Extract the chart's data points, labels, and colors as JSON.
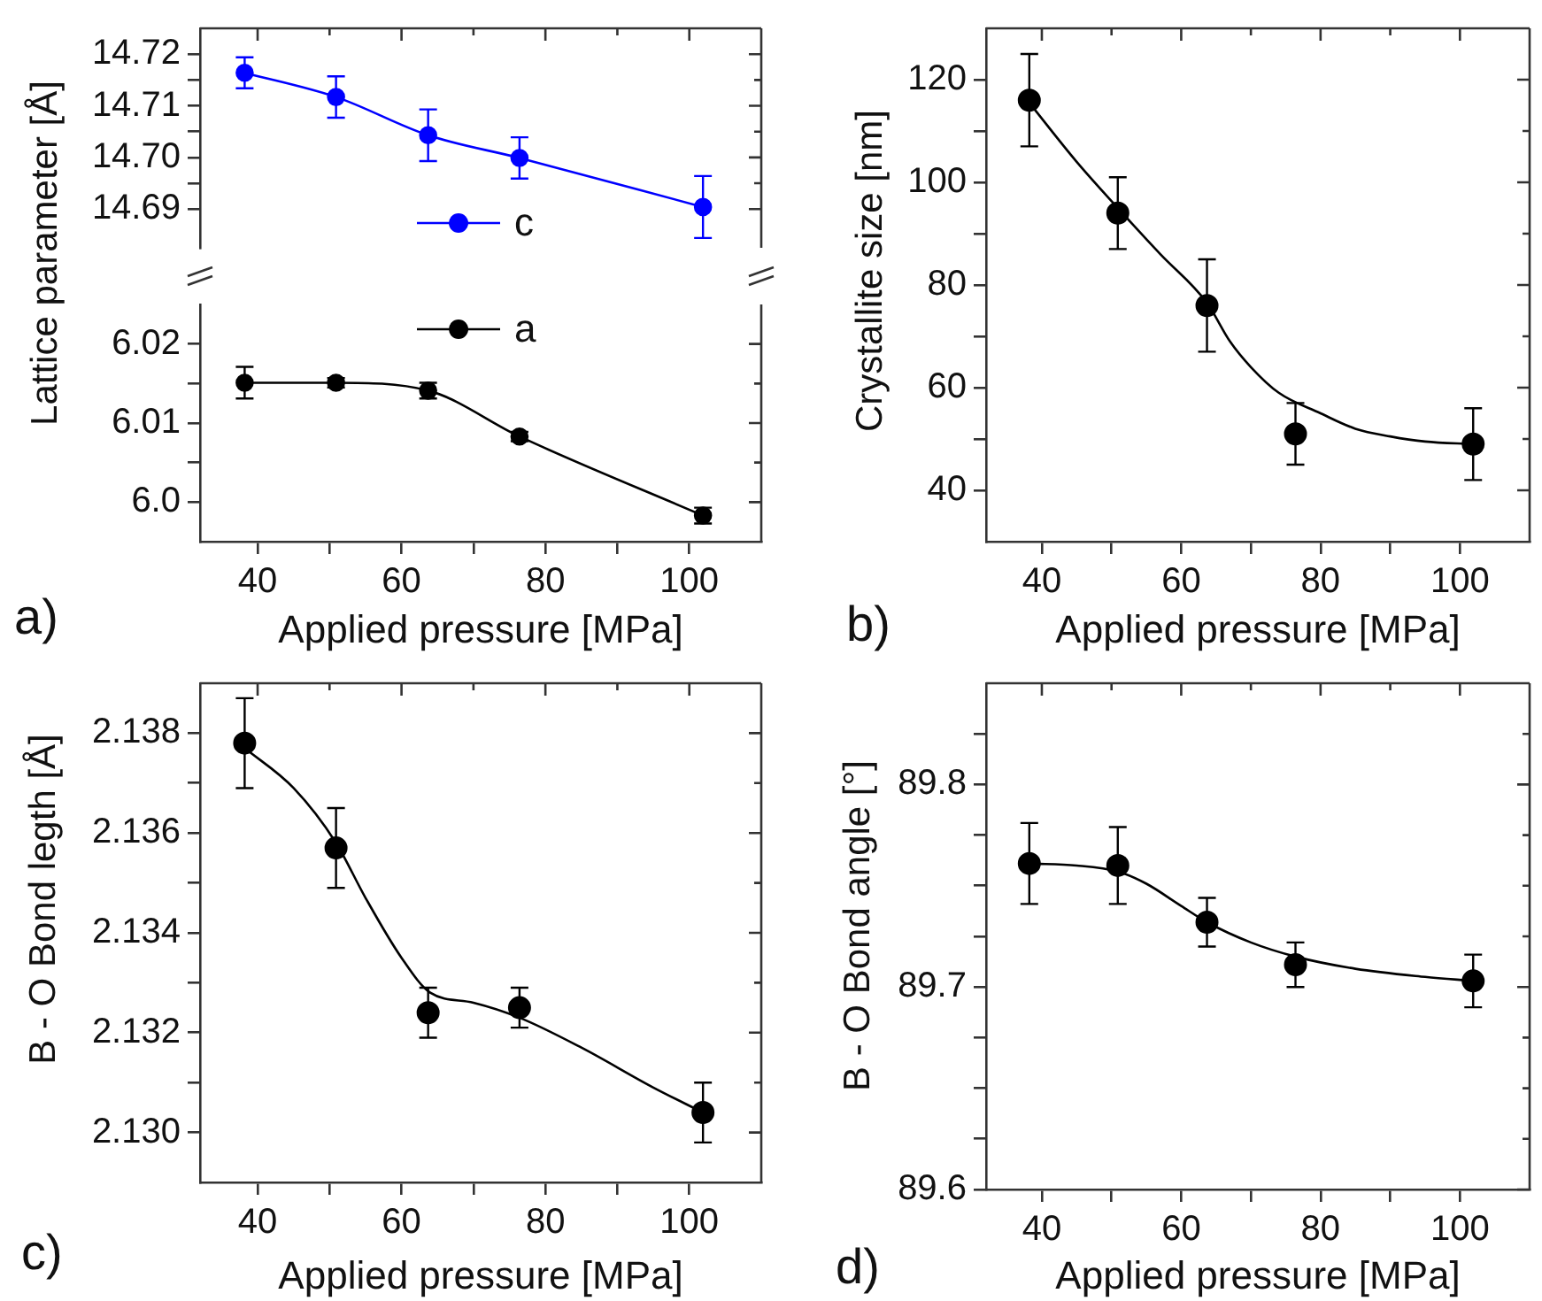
{
  "chart_data": [
    {
      "type": "line",
      "x": [
        38.2,
        50.9,
        63.7,
        76.4,
        101.9
      ],
      "xlim": [
        32,
        110
      ],
      "xticks": [
        40,
        {
          "value": 50,
          "label": null
        },
        60,
        {
          "value": 70,
          "label": null
        },
        80,
        {
          "value": 90,
          "label": null
        },
        100
      ],
      "ylim": [
        14.6825,
        14.725
      ],
      "yticks": [
        14.69,
        {
          "value": 14.695,
          "label": null
        },
        {
          "value": 14.7,
          "label": "14.70"
        },
        {
          "value": 14.705,
          "label": null
        },
        14.71,
        {
          "value": 14.715,
          "label": null
        },
        14.72
      ],
      "tick_labels": "y",
      "legend": "bottom",
      "series": [
        {
          "name": "c",
          "color": "#0000ff",
          "marker": "circle",
          "values": [
            14.7164,
            14.7117,
            14.7043,
            14.6999,
            14.6904
          ],
          "errors": [
            0.003,
            0.004,
            0.005,
            0.004,
            0.006
          ]
        }
      ]
    },
    {
      "type": "line",
      "x": [
        38.2,
        50.9,
        63.7,
        76.4,
        101.9
      ],
      "xlabel": "Applied pressure [MPa]",
      "ylabel": "Lattice parameter [Å]",
      "annotations": [
        "a)"
      ],
      "xlim": [
        32,
        110
      ],
      "xticks": [
        40,
        {
          "value": 50,
          "label": null
        },
        60,
        {
          "value": 70,
          "label": null
        },
        80,
        {
          "value": 90,
          "label": null
        },
        100
      ],
      "ylim": [
        5.995,
        6.025
      ],
      "yticks": [
        {
          "value": 6,
          "label": "6.0"
        },
        {
          "value": 6.005,
          "label": null
        },
        6.01,
        {
          "value": 6.015,
          "label": null
        },
        6.02
      ],
      "legend": "top",
      "series": [
        {
          "name": "a",
          "color": "#000000",
          "marker": "circle",
          "values": [
            6.0151,
            6.0151,
            6.0141,
            6.0083,
            5.9983
          ],
          "errors": [
            0.002,
            0.0006,
            0.001,
            0.0006,
            0.001
          ]
        }
      ]
    },
    {
      "type": "scatter",
      "x": [
        38.2,
        50.9,
        63.7,
        76.4,
        101.9
      ],
      "xlabel": "Applied pressure [MPa]",
      "ylabel": "Crystallite size [nm]",
      "annotations": [
        "b)"
      ],
      "xlim": [
        32,
        110
      ],
      "xticks": [
        40,
        {
          "value": 50,
          "label": null
        },
        60,
        {
          "value": 70,
          "label": null
        },
        80,
        {
          "value": 90,
          "label": null
        },
        100
      ],
      "ylim": [
        30,
        130
      ],
      "yticks": [
        40,
        {
          "value": 50,
          "label": null
        },
        60,
        {
          "value": 70,
          "label": null
        },
        80,
        {
          "value": 90,
          "label": null
        },
        100,
        {
          "value": 110,
          "label": null
        },
        120
      ],
      "series": [
        {
          "color": "#000000",
          "marker": "circle",
          "values": [
            116,
            94,
            76,
            51,
            49
          ],
          "errors": [
            9,
            7,
            9,
            6,
            7
          ]
        },
        {
          "type": "line",
          "color": "#000000",
          "marker": "none",
          "x": [
            38.2,
            45,
            50.9,
            57,
            63.7,
            67,
            70,
            74,
            80,
            85,
            90,
            95,
            101.9
          ],
          "values": [
            115.5,
            104,
            95,
            86,
            76.5,
            69,
            64,
            59,
            55,
            52,
            50.5,
            49.5,
            49
          ]
        }
      ]
    },
    {
      "type": "scatter",
      "x": [
        38.2,
        50.9,
        63.7,
        76.4,
        101.9
      ],
      "xlabel": "Applied pressure [MPa]",
      "ylabel": "B - O Bond legth [Å]",
      "annotations": [
        "c)"
      ],
      "xlim": [
        32,
        110
      ],
      "xticks": [
        40,
        {
          "value": 50,
          "label": null
        },
        60,
        {
          "value": 70,
          "label": null
        },
        80,
        {
          "value": 90,
          "label": null
        },
        100
      ],
      "ylim": [
        2.129,
        2.139
      ],
      "yticks": [
        {
          "value": 2.13,
          "label": "2.130"
        },
        {
          "value": 2.131,
          "label": null
        },
        2.132,
        {
          "value": 2.133,
          "label": null
        },
        2.134,
        {
          "value": 2.135,
          "label": null
        },
        2.136,
        {
          "value": 2.137,
          "label": null
        },
        2.138
      ],
      "series": [
        {
          "color": "#000000",
          "marker": "circle",
          "values": [
            2.1378,
            2.1357,
            2.1324,
            2.1325,
            2.1304
          ],
          "errors": [
            0.0009,
            0.0008,
            0.0005,
            0.0004,
            0.0006
          ]
        },
        {
          "type": "line",
          "color": "#000000",
          "marker": "none",
          "x": [
            38.2,
            45,
            50.9,
            55,
            60,
            64,
            70,
            76.4,
            85,
            95,
            101.9
          ],
          "values": [
            2.1377,
            2.1369,
            2.1358,
            2.1347,
            2.1335,
            2.1328,
            2.1326,
            2.1323,
            2.1317,
            2.1309,
            2.1304
          ]
        }
      ]
    },
    {
      "type": "scatter",
      "x": [
        38.2,
        50.9,
        63.7,
        76.4,
        101.9
      ],
      "xlabel": "Applied pressure [MPa]",
      "ylabel": "B - O Bond angle [°]",
      "annotations": [
        "d)"
      ],
      "xlim": [
        32,
        110
      ],
      "xticks": [
        40,
        {
          "value": 50,
          "label": null
        },
        60,
        {
          "value": 70,
          "label": null
        },
        80,
        {
          "value": 90,
          "label": null
        },
        100
      ],
      "ylim": [
        89.6,
        89.85
      ],
      "yticks": [
        89.6,
        {
          "value": 89.625,
          "label": null
        },
        {
          "value": 89.65,
          "label": null
        },
        {
          "value": 89.675,
          "label": null
        },
        89.7,
        {
          "value": 89.725,
          "label": null
        },
        {
          "value": 89.75,
          "label": null
        },
        {
          "value": 89.775,
          "label": null
        },
        89.8,
        {
          "value": 89.825,
          "label": null
        }
      ],
      "series": [
        {
          "color": "#000000",
          "marker": "circle",
          "values": [
            89.761,
            89.76,
            89.732,
            89.711,
            89.703
          ],
          "errors": [
            0.02,
            0.019,
            0.012,
            0.011,
            0.013
          ]
        },
        {
          "type": "line",
          "color": "#000000",
          "marker": "none",
          "x": [
            38.2,
            45,
            50.9,
            55,
            60,
            63.7,
            70,
            76.4,
            85,
            95,
            101.9
          ],
          "values": [
            89.761,
            89.76,
            89.757,
            89.751,
            89.74,
            89.732,
            89.722,
            89.715,
            89.709,
            89.705,
            89.703
          ]
        }
      ]
    }
  ]
}
